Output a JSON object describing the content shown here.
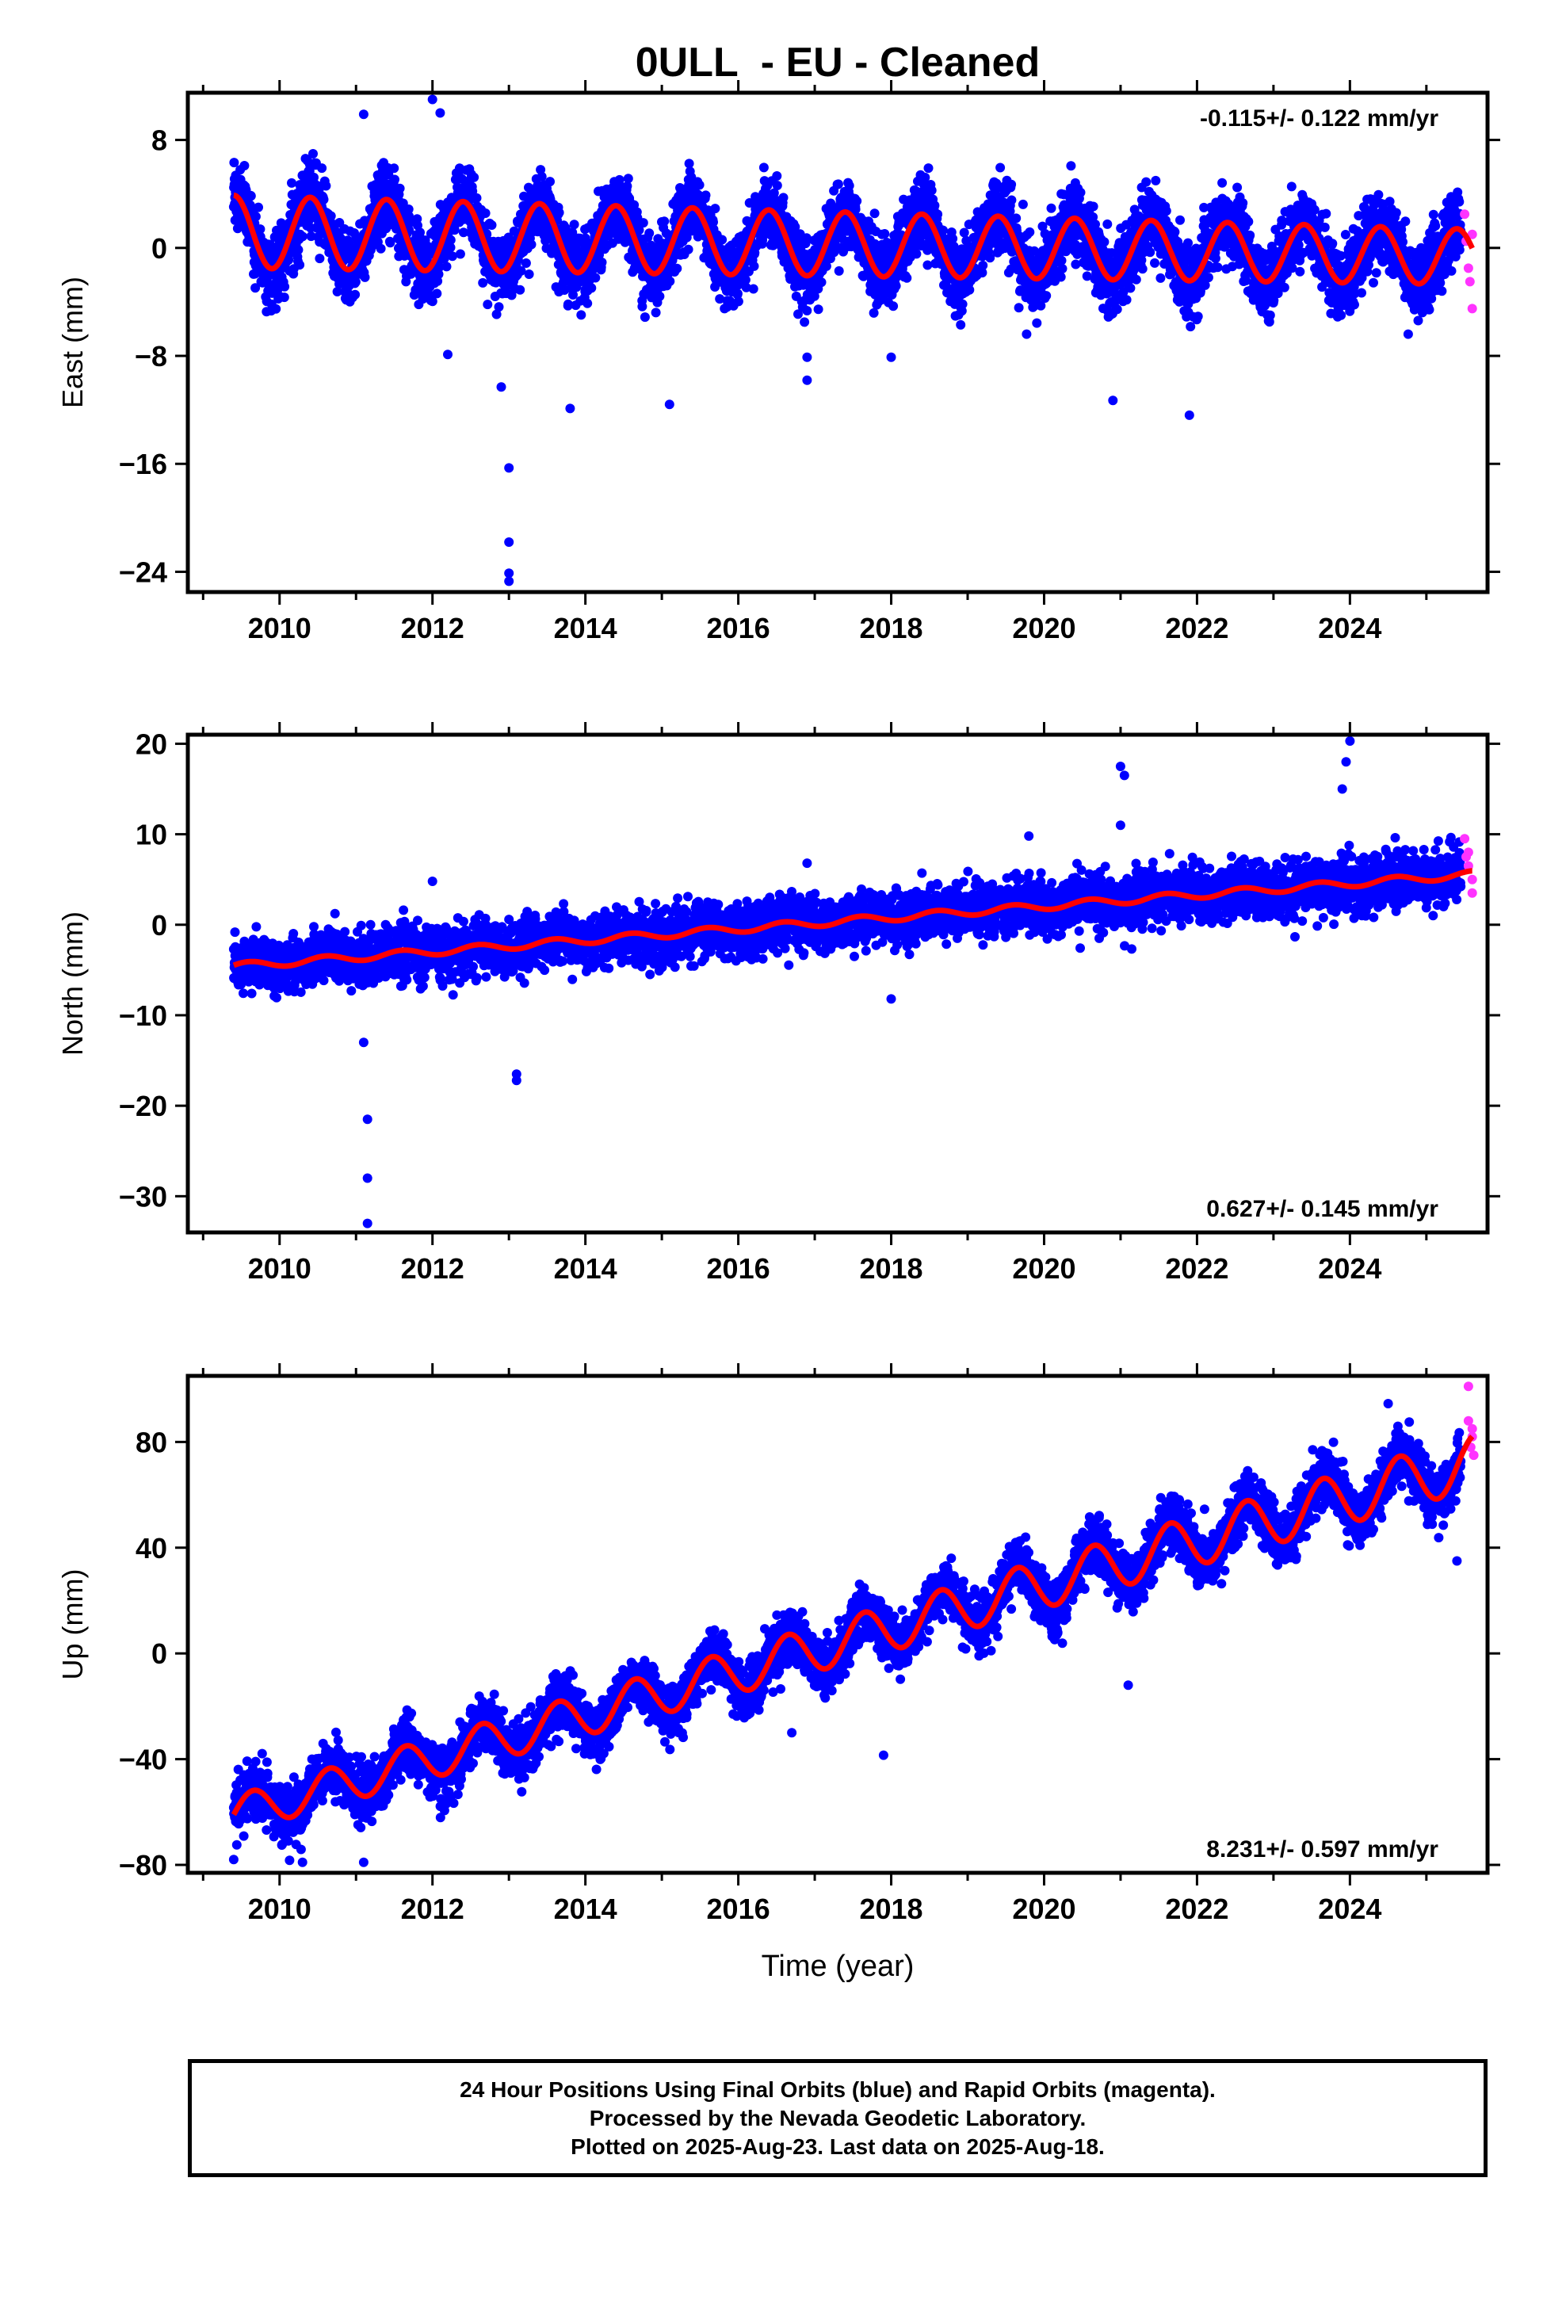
{
  "figure": {
    "title": "0ULL  - EU - Cleaned",
    "xlabel": "Time (year)"
  },
  "footer": {
    "lines": [
      "24 Hour Positions Using Final Orbits (blue) and Rapid Orbits (magenta).",
      "Processed by the Nevada Geodetic Laboratory.",
      "Plotted on 2025-Aug-23. Last data on 2025-Aug-18."
    ]
  },
  "colors": {
    "final_orbits": "#0000ff",
    "rapid_orbits": "#ff33ff",
    "model_fit": "#ff0000",
    "frame": "#000000"
  },
  "chart_data": [
    {
      "type": "scatter",
      "ylabel": "East (mm)",
      "xlim": [
        2008.8,
        2025.8
      ],
      "ylim": [
        -25.5,
        11.5
      ],
      "xticks": [
        2010,
        2012,
        2014,
        2016,
        2018,
        2020,
        2022,
        2024
      ],
      "yticks": [
        8,
        0,
        -8,
        -16,
        -24
      ],
      "ytick_labels": [
        "8",
        "0",
        "−8",
        "−16",
        "−24"
      ],
      "rate_label": "-0.115+/- 0.122 mm/yr",
      "rate_position": "top-right",
      "grid": false,
      "model": {
        "start": 2009.4,
        "end": 2025.6,
        "offset": 1.2,
        "slope": -0.115,
        "seasonal_amplitude": 2.7,
        "seasonal_amplitude_change": -0.04,
        "peak_time": 2009.4
      },
      "scatter_noise_mm": 1.3,
      "final_orbits_end": 2025.45,
      "outliers": [
        [
          2011.1,
          9.9
        ],
        [
          2012.0,
          11.0
        ],
        [
          2012.1,
          10.0
        ],
        [
          2012.2,
          -7.9
        ],
        [
          2012.9,
          -10.3
        ],
        [
          2013.0,
          -16.3
        ],
        [
          2013.0,
          -21.8
        ],
        [
          2013.0,
          -24.1
        ],
        [
          2013.0,
          -24.7
        ],
        [
          2013.8,
          -11.9
        ],
        [
          2015.1,
          -11.6
        ],
        [
          2016.9,
          -9.8
        ],
        [
          2020.9,
          -11.3
        ],
        [
          2021.9,
          -12.4
        ],
        [
          2016.9,
          -8.1
        ],
        [
          2018.0,
          -8.1
        ]
      ],
      "rapid_points": [
        [
          2025.5,
          2.5
        ],
        [
          2025.52,
          0.5
        ],
        [
          2025.55,
          -1.5
        ],
        [
          2025.57,
          -2.5
        ],
        [
          2025.6,
          -4.5
        ],
        [
          2025.6,
          1.0
        ]
      ]
    },
    {
      "type": "scatter",
      "ylabel": "North (mm)",
      "xlim": [
        2008.8,
        2025.8
      ],
      "ylim": [
        -34,
        21
      ],
      "xticks": [
        2010,
        2012,
        2014,
        2016,
        2018,
        2020,
        2022,
        2024
      ],
      "yticks": [
        20,
        10,
        0,
        -10,
        -20,
        -30
      ],
      "ytick_labels": [
        "20",
        "10",
        "0",
        "−10",
        "−20",
        "−30"
      ],
      "rate_label": "0.627+/- 0.145 mm/yr",
      "rate_position": "bottom-right",
      "grid": false,
      "model": {
        "start": 2009.4,
        "end": 2025.6,
        "offset": -4.6,
        "slope": 0.627,
        "seasonal_amplitude": 0.4,
        "seasonal_amplitude_change": 0,
        "peak_time": 2009.6
      },
      "scatter_noise_mm": 1.4,
      "final_orbits_end": 2025.45,
      "outliers": [
        [
          2011.1,
          -13.0
        ],
        [
          2011.15,
          -21.5
        ],
        [
          2011.15,
          -28.0
        ],
        [
          2011.15,
          -33.0
        ],
        [
          2012.0,
          4.8
        ],
        [
          2013.1,
          -16.5
        ],
        [
          2013.1,
          -17.2
        ],
        [
          2016.9,
          6.8
        ],
        [
          2018.0,
          -8.2
        ],
        [
          2019.8,
          9.8
        ],
        [
          2021.0,
          17.5
        ],
        [
          2021.05,
          16.5
        ],
        [
          2021.0,
          11.0
        ],
        [
          2024.0,
          20.3
        ],
        [
          2023.95,
          18.0
        ],
        [
          2023.9,
          15.0
        ]
      ],
      "rapid_points": [
        [
          2025.5,
          9.5
        ],
        [
          2025.55,
          8.0
        ],
        [
          2025.55,
          6.5
        ],
        [
          2025.6,
          5.0
        ],
        [
          2025.6,
          3.5
        ],
        [
          2025.52,
          7.5
        ]
      ]
    },
    {
      "type": "scatter",
      "ylabel": "Up (mm)",
      "xlim": [
        2008.8,
        2025.8
      ],
      "ylim": [
        -83,
        105
      ],
      "xticks": [
        2010,
        2012,
        2014,
        2016,
        2018,
        2020,
        2022,
        2024
      ],
      "yticks": [
        80,
        40,
        0,
        -40,
        -80
      ],
      "ytick_labels": [
        "80",
        "40",
        "0",
        "−40",
        "−80"
      ],
      "rate_label": "8.231+/- 0.597 mm/yr",
      "rate_position": "bottom-right",
      "grid": false,
      "model": {
        "start": 2009.4,
        "end": 2025.6,
        "offset": -61,
        "slope": 8.231,
        "seasonal_amplitude": 7.0,
        "seasonal_amplitude_change": 0.2,
        "peak_time": 2009.65
      },
      "scatter_noise_mm": 5.0,
      "final_orbits_end": 2025.45,
      "outliers": [
        [
          2009.4,
          -78.0
        ],
        [
          2010.3,
          -79.0
        ],
        [
          2011.1,
          -79.0
        ],
        [
          2017.9,
          -38.5
        ],
        [
          2021.1,
          -12.0
        ],
        [
          2024.5,
          94.5
        ],
        [
          2025.4,
          35.0
        ],
        [
          2013.5,
          -20.0
        ],
        [
          2016.7,
          -30.0
        ]
      ],
      "rapid_points": [
        [
          2025.55,
          101.0
        ],
        [
          2025.55,
          88.0
        ],
        [
          2025.6,
          85.0
        ],
        [
          2025.6,
          82.0
        ],
        [
          2025.58,
          78.0
        ],
        [
          2025.62,
          75.0
        ]
      ]
    }
  ]
}
